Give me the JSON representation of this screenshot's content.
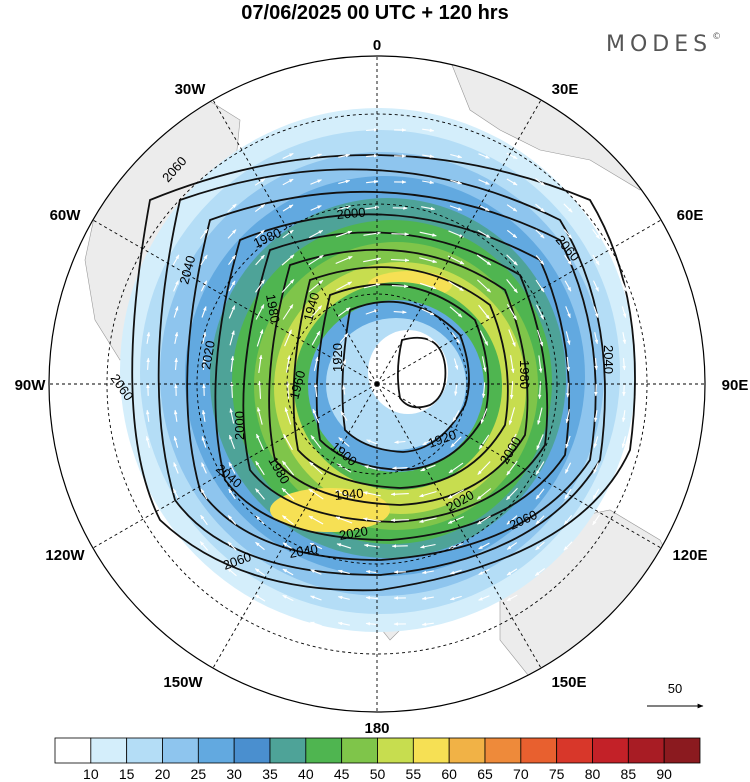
{
  "title": "07/06/2025  00 UTC  + 120 hrs",
  "brand": "MODES",
  "brand_mark": "©",
  "longitude_labels": {
    "top": "0",
    "bottom": "180",
    "left": "90W",
    "right": "90E",
    "w30": "30W",
    "e30": "30E",
    "w60": "60W",
    "e60": "60E",
    "w120": "120W",
    "e120": "120E",
    "w150": "150W",
    "e150": "150E"
  },
  "vector_scale_label": "50",
  "contour_labels": [
    "2060",
    "2040",
    "2020",
    "2000",
    "1980",
    "1960",
    "1940",
    "1920",
    "1900"
  ],
  "colorbar": {
    "ticks": [
      "10",
      "15",
      "20",
      "25",
      "30",
      "35",
      "40",
      "45",
      "50",
      "55",
      "60",
      "65",
      "70",
      "75",
      "80",
      "85",
      "90"
    ],
    "colors": [
      "#ffffff",
      "#d4eefb",
      "#b4ddf6",
      "#8ec5ee",
      "#62a9e0",
      "#4a8fcf",
      "#4ea398",
      "#4fb550",
      "#7fc54a",
      "#c7dd4f",
      "#f6e054",
      "#f1b246",
      "#ee8a3a",
      "#e8602f",
      "#d8372a",
      "#c32128",
      "#a81c24",
      "#8b1a1f"
    ]
  },
  "colors": {
    "land": "#ececec",
    "contour": "#111111",
    "arrows": "#ffffff"
  }
}
